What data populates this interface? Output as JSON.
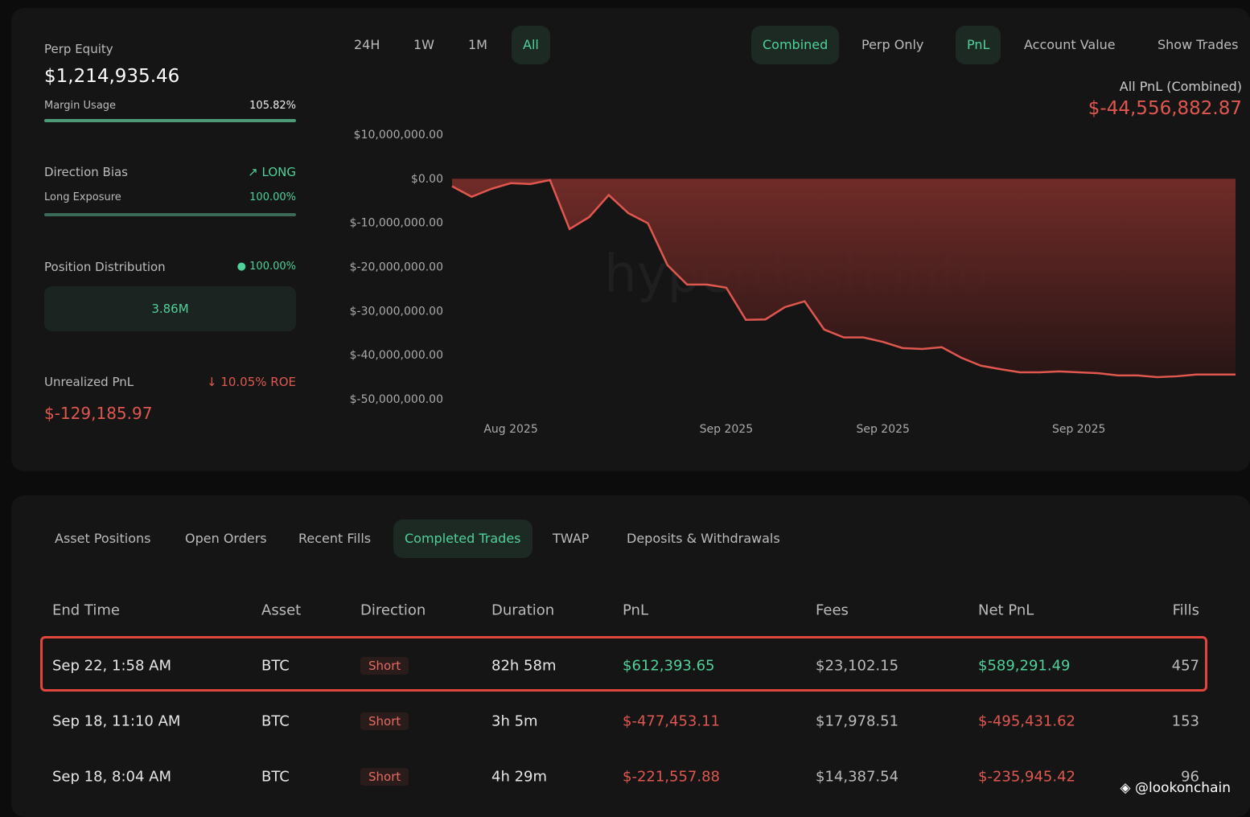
{
  "summary": {
    "perp_equity": {
      "label": "Perp Equity",
      "value": "$1,214,935.46"
    },
    "margin_usage": {
      "label": "Margin Usage",
      "value": "105.82%"
    },
    "direction_bias": {
      "label": "Direction Bias",
      "value": "LONG"
    },
    "long_exposure": {
      "label": "Long Exposure",
      "value": "100.00%"
    },
    "position_distribution": {
      "label": "Position Distribution",
      "value": "100.00%",
      "amount": "3.86M"
    },
    "unrealized_pnl": {
      "label": "Unrealized PnL",
      "roe": "10.05% ROE",
      "value": "$-129,185.97"
    }
  },
  "range_tabs": {
    "items": [
      "24H",
      "1W",
      "1M",
      "All"
    ],
    "active": 3
  },
  "view_tabs": {
    "items": [
      "Combined",
      "Perp Only",
      "PnL",
      "Account Value",
      "Show Trades"
    ],
    "active": [
      0,
      2
    ]
  },
  "chart_data": {
    "type": "line",
    "title": "All PnL (Combined)",
    "total": "$-44,556,882.87",
    "watermark": "hyperdash.info",
    "color": "#e0574f",
    "categories": [
      null,
      null,
      null,
      "Aug 2025",
      null,
      null,
      null,
      null,
      null,
      null,
      null,
      null,
      null,
      null,
      "Sep 2025",
      null,
      null,
      null,
      null,
      null,
      null,
      null,
      "Sep 2025",
      null,
      null,
      null,
      null,
      null,
      null,
      null,
      null,
      null,
      "Sep 2025",
      null,
      null,
      null,
      null,
      null,
      null,
      null,
      null
    ],
    "values": [
      -1600000,
      -4000000,
      -2200000,
      -900000,
      -1100000,
      -200000,
      -11300000,
      -8600000,
      -3600000,
      -7700000,
      -10000000,
      -19500000,
      -23900000,
      -23900000,
      -24600000,
      -31900000,
      -31800000,
      -29000000,
      -27700000,
      -34100000,
      -35900000,
      -35900000,
      -36900000,
      -38300000,
      -38500000,
      -38100000,
      -40500000,
      -42300000,
      -43100000,
      -43800000,
      -43800000,
      -43600000,
      -43800000,
      -44000000,
      -44500000,
      -44500000,
      -44900000,
      -44700000,
      -44300000,
      -44300000,
      -44300000
    ],
    "ylim": [
      -50000000,
      10000000
    ],
    "yticks": [
      {
        "value": 10000000,
        "label": "$10,000,000.00"
      },
      {
        "value": 0,
        "label": "$0.00"
      },
      {
        "value": -10000000,
        "label": "$-10,000,000.00"
      },
      {
        "value": -20000000,
        "label": "$-20,000,000.00"
      },
      {
        "value": -30000000,
        "label": "$-30,000,000.00"
      },
      {
        "value": -40000000,
        "label": "$-40,000,000.00"
      },
      {
        "value": -50000000,
        "label": "$-50,000,000.00"
      }
    ]
  },
  "table": {
    "tabs": [
      "Asset Positions",
      "Open Orders",
      "Recent Fills",
      "Completed Trades",
      "TWAP",
      "Deposits & Withdrawals"
    ],
    "active_tab": 3,
    "columns": [
      "End Time",
      "Asset",
      "Direction",
      "Duration",
      "PnL",
      "Fees",
      "Net PnL",
      "Fills"
    ],
    "rows": [
      [
        "Sep 22, 1:58 AM",
        "BTC",
        "Short",
        "82h 58m",
        "$612,393.65",
        "$23,102.15",
        "$589,291.49",
        "457"
      ],
      [
        "Sep 18, 11:10 AM",
        "BTC",
        "Short",
        "3h 5m",
        "$-477,453.11",
        "$17,978.51",
        "$-495,431.62",
        "153"
      ],
      [
        "Sep 18, 8:04 AM",
        "BTC",
        "Short",
        "4h 29m",
        "$-221,557.88",
        "$14,387.54",
        "$-235,945.42",
        "96"
      ]
    ]
  },
  "credit": "@lookonchain"
}
